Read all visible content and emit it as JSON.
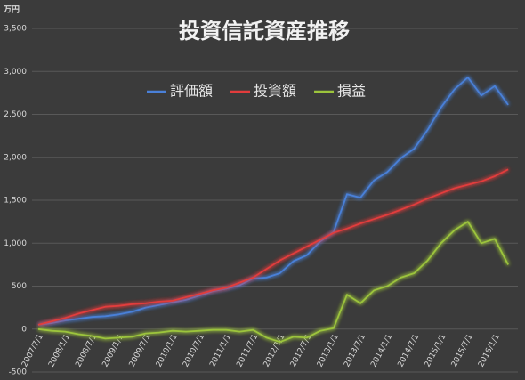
{
  "chart_data": {
    "type": "line",
    "title": "投資信託資産推移",
    "y_unit": "万円",
    "x": [
      "2007/7/1",
      "2007/10/1",
      "2008/1/1",
      "2008/4/1",
      "2008/7/1",
      "2008/10/1",
      "2009/1/1",
      "2009/4/1",
      "2009/7/1",
      "2009/10/1",
      "2010/1/1",
      "2010/4/1",
      "2010/7/1",
      "2010/10/1",
      "2011/1/1",
      "2011/4/1",
      "2011/7/1",
      "2011/10/1",
      "2012/1/1",
      "2012/4/1",
      "2012/7/1",
      "2012/10/1",
      "2013/1/1",
      "2013/4/1",
      "2013/7/1",
      "2013/10/1",
      "2014/1/1",
      "2014/4/1",
      "2014/7/1",
      "2014/10/1",
      "2015/1/1",
      "2015/4/1",
      "2015/7/1",
      "2015/10/1",
      "2016/1/1",
      "2016/4/1"
    ],
    "xticks": [
      "2007/7/1",
      "2008/1/1",
      "2008/7/1",
      "2009/1/1",
      "2009/7/1",
      "2010/1/1",
      "2010/7/1",
      "2011/1/1",
      "2011/7/1",
      "2012/1/1",
      "2012/7/1",
      "2013/1/1",
      "2013/7/1",
      "2014/1/1",
      "2014/7/1",
      "2015/1/1",
      "2015/7/1",
      "2016/1/1"
    ],
    "series": [
      {
        "name": "評価額",
        "color": "#4a80d8",
        "values": [
          50,
          70,
          100,
          120,
          140,
          150,
          170,
          200,
          250,
          280,
          310,
          340,
          390,
          440,
          470,
          510,
          590,
          600,
          650,
          790,
          860,
          1020,
          1130,
          1570,
          1530,
          1730,
          1830,
          1990,
          2100,
          2320,
          2580,
          2790,
          2930,
          2720,
          2830,
          2610
        ]
      },
      {
        "name": "投資額",
        "color": "#e23c3c",
        "values": [
          50,
          90,
          130,
          180,
          220,
          260,
          270,
          290,
          300,
          320,
          330,
          370,
          410,
          450,
          480,
          540,
          600,
          700,
          800,
          880,
          960,
          1040,
          1120,
          1170,
          1230,
          1280,
          1330,
          1390,
          1450,
          1520,
          1580,
          1640,
          1680,
          1720,
          1780,
          1860
        ]
      },
      {
        "name": "損益",
        "color": "#9cc43c",
        "values": [
          0,
          -20,
          -30,
          -60,
          -80,
          -110,
          -100,
          -90,
          -50,
          -40,
          -20,
          -30,
          -20,
          -10,
          -10,
          -30,
          -10,
          -100,
          -150,
          -90,
          -100,
          -20,
          10,
          400,
          300,
          450,
          500,
          600,
          650,
          800,
          1000,
          1150,
          1250,
          1000,
          1050,
          750
        ]
      }
    ],
    "ylim": [
      -500,
      3500
    ],
    "yticks": [
      -500,
      0,
      500,
      {
        "value": 1000,
        "label": "1,000"
      },
      {
        "value": 1500,
        "label": "1,500"
      },
      {
        "value": 2000,
        "label": "2,000"
      },
      {
        "value": 2500,
        "label": "2,500"
      },
      {
        "value": 3000,
        "label": "3,000"
      },
      {
        "value": 3500,
        "label": "3,500"
      }
    ],
    "grid": true,
    "legend": "top"
  }
}
